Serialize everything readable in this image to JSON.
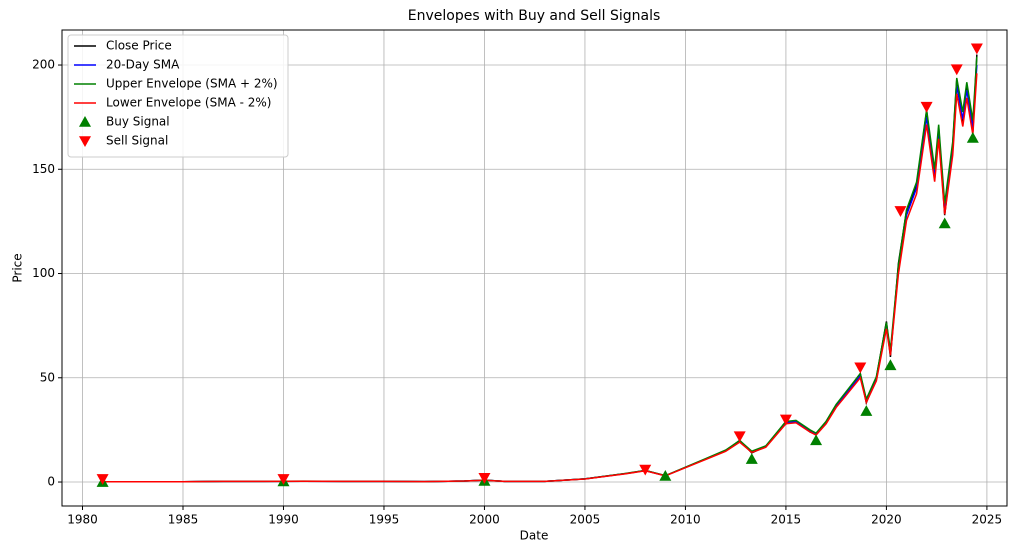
{
  "chart_data": {
    "type": "line",
    "title": "Envelopes with Buy and Sell Signals",
    "x_label": "Date",
    "y_label": "Price",
    "x": [
      1981,
      1983,
      1985,
      1987,
      1989,
      1991,
      1993,
      1995,
      1997,
      1999,
      2000,
      2001,
      2003,
      2005,
      2007,
      2008,
      2009,
      2010,
      2011,
      2012,
      2012.7,
      2013.3,
      2014,
      2015,
      2015.5,
      2016.2,
      2016.5,
      2017,
      2017.5,
      2018,
      2018.7,
      2019,
      2019.5,
      2020,
      2020.2,
      2020.6,
      2021,
      2021.5,
      2022,
      2022.4,
      2022.6,
      2022.9,
      2023.3,
      2023.5,
      2023.8,
      2024,
      2024.3,
      2024.5
    ],
    "xlim": [
      1978.98,
      2026.0
    ],
    "xticks": [
      1980,
      1985,
      1990,
      1995,
      2000,
      2005,
      2010,
      2015,
      2020,
      2025
    ],
    "ylim": [
      -11.5,
      216.8
    ],
    "yticks": [
      0,
      50,
      100,
      150,
      200
    ],
    "grid": true,
    "legend": "upper left",
    "series": [
      {
        "name": "Close Price",
        "color": "#000000",
        "values": [
          0.1,
          0.1,
          0.1,
          0.3,
          0.3,
          0.4,
          0.3,
          0.3,
          0.2,
          0.5,
          0.9,
          0.3,
          0.3,
          1.5,
          4,
          5.5,
          3,
          7,
          11,
          15,
          20,
          14,
          17,
          29,
          29,
          24,
          23,
          29,
          37,
          43,
          52,
          38,
          50,
          77,
          60,
          105,
          130,
          142,
          178,
          145,
          170,
          128,
          162,
          193,
          172,
          190,
          168,
          205
        ]
      },
      {
        "name": "20-Day SMA",
        "color": "#0000ff",
        "values": [
          0.1,
          0.1,
          0.1,
          0.3,
          0.3,
          0.4,
          0.3,
          0.3,
          0.2,
          0.5,
          0.9,
          0.3,
          0.3,
          1.5,
          4,
          5.5,
          3,
          7,
          11,
          15,
          19.5,
          14.5,
          17,
          28.5,
          29,
          24.5,
          23,
          28.5,
          36.5,
          42.5,
          51,
          39,
          49.5,
          75,
          62,
          102,
          128,
          141,
          175,
          147,
          168,
          131,
          160,
          190,
          174,
          188,
          170,
          200
        ]
      },
      {
        "name": "Upper Envelope (SMA + 2%)",
        "color": "#008000",
        "values": [
          0.1,
          0.1,
          0.1,
          0.31,
          0.31,
          0.41,
          0.31,
          0.31,
          0.2,
          0.51,
          0.92,
          0.31,
          0.31,
          1.53,
          4.08,
          5.61,
          3.06,
          7.14,
          11.22,
          15.3,
          19.89,
          14.79,
          17.34,
          29.07,
          29.58,
          24.99,
          23.46,
          29.07,
          37.23,
          43.35,
          52.02,
          39.78,
          50.49,
          76.5,
          63.24,
          104.04,
          130.56,
          143.82,
          178.5,
          149.94,
          171.36,
          133.62,
          163.2,
          193.8,
          177.48,
          191.76,
          173.4,
          204
        ]
      },
      {
        "name": "Lower Envelope (SMA - 2%)",
        "color": "#ff0000",
        "values": [
          0.1,
          0.1,
          0.1,
          0.29,
          0.29,
          0.39,
          0.29,
          0.29,
          0.2,
          0.49,
          0.88,
          0.29,
          0.29,
          1.47,
          3.92,
          5.39,
          2.94,
          6.86,
          10.78,
          14.7,
          19.11,
          14.21,
          16.66,
          27.93,
          28.42,
          24.01,
          22.54,
          27.93,
          35.77,
          41.65,
          49.98,
          38.22,
          48.51,
          73.5,
          60.76,
          99.96,
          125.44,
          138.18,
          171.5,
          144.06,
          164.64,
          128.38,
          156.8,
          186.2,
          170.52,
          184.24,
          166.6,
          196
        ]
      },
      {
        "name": "Buy Signal",
        "color": "#008000",
        "marker": "triangle-up",
        "x": [
          1981,
          1990,
          2000,
          2009,
          2013.3,
          2016.5,
          2019,
          2020.2,
          2022.9,
          2024.3
        ],
        "values": [
          0,
          0.3,
          0.5,
          2.9,
          11,
          20,
          34,
          56,
          124,
          165
        ]
      },
      {
        "name": "Sell Signal",
        "color": "#ff0000",
        "marker": "triangle-down",
        "x": [
          1981,
          1990,
          2000,
          2008,
          2012.7,
          2015,
          2018.7,
          2020.7,
          2022,
          2023.5,
          2024.5
        ],
        "values": [
          1.5,
          1.5,
          2,
          6,
          22,
          30,
          55,
          130,
          180,
          198,
          208
        ]
      }
    ]
  }
}
